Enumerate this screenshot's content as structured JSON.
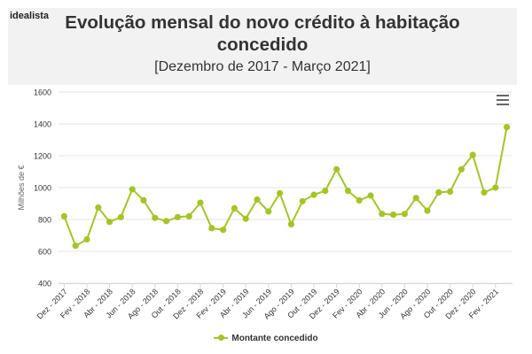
{
  "brand": "idealista",
  "title_line1": "Evolução mensal do novo crédito à habitação",
  "title_line2": "concedido",
  "subtitle": "[Dezembro de 2017 - Março 2021]",
  "menu_icon": "hamburger-menu-icon",
  "legend_label": "Montante concedido",
  "colors": {
    "series": "#a2c724",
    "grid": "#e6e6e6",
    "axis": "#ccd6eb",
    "text": "#333333"
  },
  "chart_data": {
    "type": "line",
    "ylabel": "Milhões de €",
    "ylim": [
      400,
      1600
    ],
    "yticks": [
      400,
      600,
      800,
      1000,
      1200,
      1400,
      1600
    ],
    "xtick_labels": [
      "Dez - 2017",
      "Fev - 2018",
      "Abr - 2018",
      "Jun - 2018",
      "Ago - 2018",
      "Out - 2018",
      "Dez - 2018",
      "Fev - 2019",
      "Abr - 2019",
      "Jun - 2019",
      "Ago - 2019",
      "Out - 2019",
      "Dez - 2019",
      "Fev - 2020",
      "Abr - 2020",
      "Jun - 2020",
      "Ago - 2020",
      "Out - 2020",
      "Dez - 2020",
      "Fev - 2021"
    ],
    "categories": [
      "Dez - 2017",
      "Jan - 2018",
      "Fev - 2018",
      "Mar - 2018",
      "Abr - 2018",
      "Mai - 2018",
      "Jun - 2018",
      "Jul - 2018",
      "Ago - 2018",
      "Set - 2018",
      "Out - 2018",
      "Nov - 2018",
      "Dez - 2018",
      "Jan - 2019",
      "Fev - 2019",
      "Mar - 2019",
      "Abr - 2019",
      "Mai - 2019",
      "Jun - 2019",
      "Jul - 2019",
      "Ago - 2019",
      "Set - 2019",
      "Out - 2019",
      "Nov - 2019",
      "Dez - 2019",
      "Jan - 2020",
      "Fev - 2020",
      "Mar - 2020",
      "Abr - 2020",
      "Mai - 2020",
      "Jun - 2020",
      "Jul - 2020",
      "Ago - 2020",
      "Set - 2020",
      "Out - 2020",
      "Nov - 2020",
      "Dez - 2020",
      "Jan - 2021",
      "Fev - 2021",
      "Mar - 2021"
    ],
    "series": [
      {
        "name": "Montante concedido",
        "values": [
          820,
          635,
          675,
          875,
          785,
          815,
          990,
          920,
          810,
          790,
          815,
          820,
          905,
          745,
          735,
          870,
          805,
          925,
          850,
          965,
          770,
          915,
          955,
          980,
          1115,
          980,
          920,
          950,
          835,
          830,
          835,
          935,
          855,
          970,
          975,
          1115,
          1205,
          970,
          1000,
          1380
        ]
      }
    ],
    "legend": "bottom-center",
    "grid": true
  }
}
